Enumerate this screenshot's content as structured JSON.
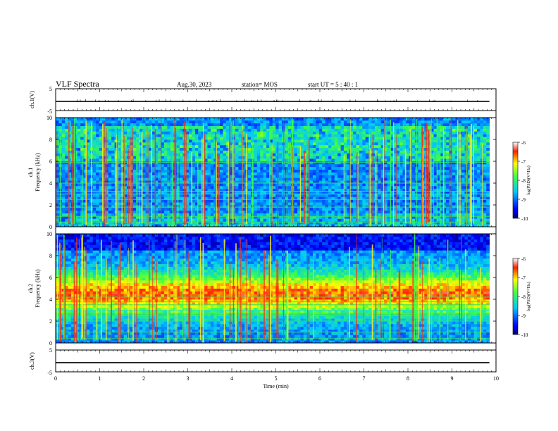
{
  "header": {
    "title": "VLF Spectra",
    "date": "Aug.30, 2023",
    "station": "station= MOS",
    "start_ut": "start  UT =   5 : 40 : 1"
  },
  "chart_data": [
    {
      "type": "line",
      "panel": "ch1-waveform",
      "ylabel": "ch.1(V)",
      "ylim": [
        -5,
        5
      ],
      "yticks": [
        "5",
        "-5"
      ],
      "x": [
        0,
        9.85
      ],
      "values": [
        -0.8,
        -0.8
      ]
    },
    {
      "type": "heatmap",
      "panel": "ch1-spectrogram",
      "ylabel_top": "ch.1",
      "ylabel": "Frequency (kHz)",
      "ylim": [
        0,
        10
      ],
      "yticks": [
        "0",
        "2",
        "4",
        "6",
        "8",
        "10"
      ],
      "xlim": [
        0,
        10
      ],
      "colorbar": {
        "label": "log(PSD)(V²/Hz)",
        "range": [
          -10,
          -6
        ],
        "ticks": [
          "-6",
          "-7",
          "-8",
          "-9",
          "-10"
        ]
      }
    },
    {
      "type": "heatmap",
      "panel": "ch2-spectrogram",
      "ylabel_top": "ch.2",
      "ylabel": "Frequency (kHz)",
      "ylim": [
        0,
        10
      ],
      "yticks": [
        "0",
        "2",
        "4",
        "6",
        "8",
        "10"
      ],
      "xlim": [
        0,
        10
      ],
      "colorbar": {
        "label": "log(PSD)(V²/Hz)",
        "range": [
          -10,
          -6
        ],
        "ticks": [
          "-6",
          "-7",
          "-8",
          "-9",
          "-10"
        ]
      }
    },
    {
      "type": "line",
      "panel": "ch3-waveform",
      "ylabel": "ch.3(V)",
      "ylim": [
        -5,
        5
      ],
      "yticks": [
        "5",
        "-5"
      ],
      "x": [
        0,
        9.85
      ],
      "values": [
        -0.8,
        -0.8
      ]
    }
  ],
  "xaxis": {
    "label": "Time  (min)",
    "ticks": [
      "0",
      "1",
      "2",
      "3",
      "4",
      "5",
      "6",
      "7",
      "8",
      "9",
      "10"
    ]
  }
}
